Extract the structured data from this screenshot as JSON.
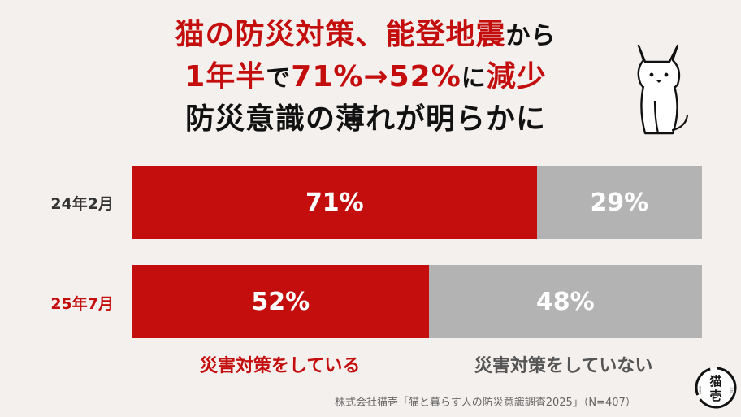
{
  "title": {
    "line1_red": "猫の防災対策、能登地震",
    "line1_black": "から",
    "line2_red_a": "1年半",
    "line2_black_a": "で",
    "line2_red_b": "71%→52%",
    "line2_black_b": "に",
    "line2_red_c": "減少",
    "line3": "防災意識の薄れが明らかに"
  },
  "chart_data": {
    "type": "bar",
    "orientation": "horizontal",
    "stacked": true,
    "normalized_to": 100,
    "categories": [
      "24年2月",
      "25年7月"
    ],
    "series": [
      {
        "name": "災害対策をしている",
        "color": "#c40d0d",
        "values": [
          71,
          52
        ],
        "labels": [
          "71%",
          "52%"
        ]
      },
      {
        "name": "災害対策をしていない",
        "color": "#b3b3b3",
        "values": [
          29,
          48
        ],
        "labels": [
          "29%",
          "48%"
        ]
      }
    ],
    "category_label_colors": [
      "#333333",
      "#c40d0d"
    ],
    "legend_position": "bottom"
  },
  "source": "株式会社猫壱「猫と暮らす人の防災意識調査2025」（N=407）",
  "logo": {
    "text": "猫\n壱",
    "side_left": "neco",
    "side_right": "ichi"
  },
  "colors": {
    "background": "#f4f0ee",
    "accent_red": "#c40d0d",
    "gray": "#b3b3b3",
    "title_black": "#111111"
  }
}
